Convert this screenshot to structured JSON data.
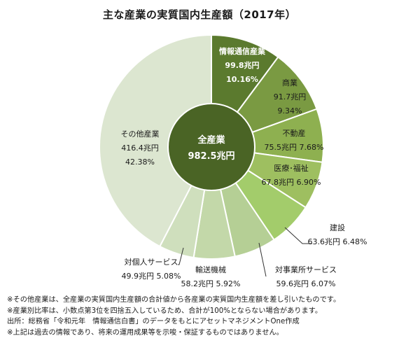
{
  "chart_data": {
    "type": "pie",
    "title": "主な産業の実質国内生産額（2017年）",
    "center": {
      "label": "全産業",
      "value": "982.5兆円"
    },
    "slices": [
      {
        "name": "情報通信産業",
        "value": 99.8,
        "value_text": "99.8兆円",
        "pct": 10.16,
        "pct_text": "10.16%",
        "color": "#5b7a2e"
      },
      {
        "name": "商業",
        "value": 91.7,
        "value_text": "91.7兆円",
        "pct": 9.34,
        "pct_text": "9.34%",
        "color": "#7a9a42"
      },
      {
        "name": "不動産",
        "value": 75.5,
        "value_text": "75.5兆円",
        "pct": 7.68,
        "pct_text": "7.68%",
        "color": "#8eb050"
      },
      {
        "name": "医療･福祉",
        "value": 67.8,
        "value_text": "67.8兆円",
        "pct": 6.9,
        "pct_text": "6.90%",
        "color": "#9ebf60"
      },
      {
        "name": "建設",
        "value": 63.6,
        "value_text": "63.6兆円",
        "pct": 6.48,
        "pct_text": "6.48%",
        "color": "#a3cc6b"
      },
      {
        "name": "対事業所サービス",
        "value": 59.6,
        "value_text": "59.6兆円",
        "pct": 6.07,
        "pct_text": "6.07%",
        "color": "#b5cf95"
      },
      {
        "name": "輸送機械",
        "value": 58.2,
        "value_text": "58.2兆円",
        "pct": 5.92,
        "pct_text": "5.92%",
        "color": "#c3d8a9"
      },
      {
        "name": "対個人サービス",
        "value": 49.9,
        "value_text": "49.9兆円",
        "pct": 5.08,
        "pct_text": "5.08%",
        "color": "#cfdfbd"
      },
      {
        "name": "その他産業",
        "value": 416.4,
        "value_text": "416.4兆円",
        "pct": 42.38,
        "pct_text": "42.38%",
        "color": "#dce6d0"
      }
    ],
    "colors": {
      "center_fill": "#4a6425",
      "label_dark": "#1a1a1a",
      "label_light": "#ffffff"
    }
  },
  "notes": [
    "※その他産業は、全産業の実質国内生産額の合計値から各産業の実質国内生産額を差し引いたものです。",
    "※産業別比率は、小数点第3位を四捨五入しているため、合計が100%とならない場合があります。",
    "出所：総務省「令和元年　情報通信白書」のデータをもとにアセットマネジメントOne作成",
    "※上記は過去の情報であり、将来の運用成果等を示唆・保証するものではありません。"
  ]
}
